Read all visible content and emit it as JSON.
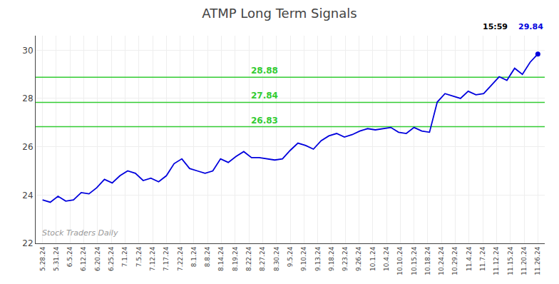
{
  "chart_data": {
    "type": "line",
    "title": "ATMP Long Term Signals",
    "x": [
      0,
      0.5625,
      1.125,
      1.6875,
      2.25,
      2.8125,
      3.375,
      3.9375,
      4.5,
      5.0625,
      5.625,
      6.1875,
      6.75,
      7.3125,
      7.875,
      8.4375,
      9,
      9.5625,
      10.125,
      10.6875,
      11.25,
      11.8125,
      12.375,
      12.9375,
      13.5,
      14.0625,
      14.625,
      15.1875,
      15.75,
      16.3125,
      16.875,
      17.4375,
      18,
      18.5625,
      19.125,
      19.6875,
      20.25,
      20.8125,
      21.375,
      21.9375,
      22.5,
      23.0625,
      23.625,
      24.1875,
      24.75,
      25.3125,
      25.875,
      26.4375,
      27,
      27.5625,
      28.125,
      28.6875,
      29.25,
      29.8125,
      30.375,
      30.9375,
      31.5,
      32.0625,
      32.625,
      33.1875,
      33.75,
      34.3125,
      34.875,
      35.4375,
      36
    ],
    "values": [
      23.8,
      23.7,
      23.95,
      23.75,
      23.8,
      24.1,
      24.05,
      24.3,
      24.65,
      24.5,
      24.8,
      25.0,
      24.9,
      24.6,
      24.7,
      24.55,
      24.8,
      25.3,
      25.5,
      25.1,
      25.0,
      24.9,
      25.0,
      25.5,
      25.35,
      25.6,
      25.8,
      25.55,
      25.55,
      25.5,
      25.45,
      25.5,
      25.85,
      26.15,
      26.05,
      25.9,
      26.25,
      26.45,
      26.55,
      26.4,
      26.5,
      26.65,
      26.75,
      26.7,
      26.75,
      26.8,
      26.6,
      26.55,
      26.8,
      26.65,
      26.6,
      27.85,
      28.2,
      28.1,
      28.0,
      28.3,
      28.15,
      28.2,
      28.55,
      28.9,
      28.75,
      29.25,
      29.0,
      29.5,
      29.84
    ],
    "color": "#0000dd",
    "marker": "end",
    "xlim": [
      -0.5,
      36.5
    ],
    "xticks": [
      {
        "value": 0,
        "label": "5.28.24"
      },
      {
        "value": 1,
        "label": "5.31.24"
      },
      {
        "value": 2,
        "label": "6.5.24"
      },
      {
        "value": 3,
        "label": "6.12.24"
      },
      {
        "value": 4,
        "label": "6.20.24"
      },
      {
        "value": 5,
        "label": "6.25.24"
      },
      {
        "value": 6,
        "label": "7.1.24"
      },
      {
        "value": 7,
        "label": "7.5.24"
      },
      {
        "value": 8,
        "label": "7.12.24"
      },
      {
        "value": 9,
        "label": "7.17.24"
      },
      {
        "value": 10,
        "label": "7.22.24"
      },
      {
        "value": 11,
        "label": "8.1.24"
      },
      {
        "value": 12,
        "label": "8.8.24"
      },
      {
        "value": 13,
        "label": "8.14.24"
      },
      {
        "value": 14,
        "label": "8.19.24"
      },
      {
        "value": 15,
        "label": "8.22.24"
      },
      {
        "value": 16,
        "label": "8.27.24"
      },
      {
        "value": 17,
        "label": "8.30.24"
      },
      {
        "value": 18,
        "label": "9.5.24"
      },
      {
        "value": 19,
        "label": "9.10.24"
      },
      {
        "value": 20,
        "label": "9.13.24"
      },
      {
        "value": 21,
        "label": "9.18.24"
      },
      {
        "value": 22,
        "label": "9.23.24"
      },
      {
        "value": 23,
        "label": "9.26.24"
      },
      {
        "value": 24,
        "label": "10.1.24"
      },
      {
        "value": 25,
        "label": "10.4.24"
      },
      {
        "value": 26,
        "label": "10.10.24"
      },
      {
        "value": 27,
        "label": "10.15.24"
      },
      {
        "value": 28,
        "label": "10.18.24"
      },
      {
        "value": 29,
        "label": "10.24.24"
      },
      {
        "value": 30,
        "label": "10.29.24"
      },
      {
        "value": 31,
        "label": "11.4.24"
      },
      {
        "value": 32,
        "label": "11.7.24"
      },
      {
        "value": 33,
        "label": "11.12.24"
      },
      {
        "value": 34,
        "label": "11.15.24"
      },
      {
        "value": 35,
        "label": "11.20.24"
      },
      {
        "value": 36,
        "label": "11.26.24"
      }
    ],
    "ylim": [
      22,
      30.6
    ],
    "yticks": [
      22,
      24,
      26,
      28,
      30
    ],
    "grid": true,
    "reference_lines": [
      {
        "value": 28.88,
        "label": "28.88",
        "color": "#33cc33"
      },
      {
        "value": 27.84,
        "label": "27.84",
        "color": "#33cc33"
      },
      {
        "value": 26.83,
        "label": "26.83",
        "color": "#33cc33"
      }
    ],
    "annotations": [
      {
        "text": "15:59"
      },
      {
        "text": "29.84",
        "color": "#0000dd"
      },
      {
        "text": "Stock Traders Daily",
        "color": "#999999"
      }
    ]
  }
}
